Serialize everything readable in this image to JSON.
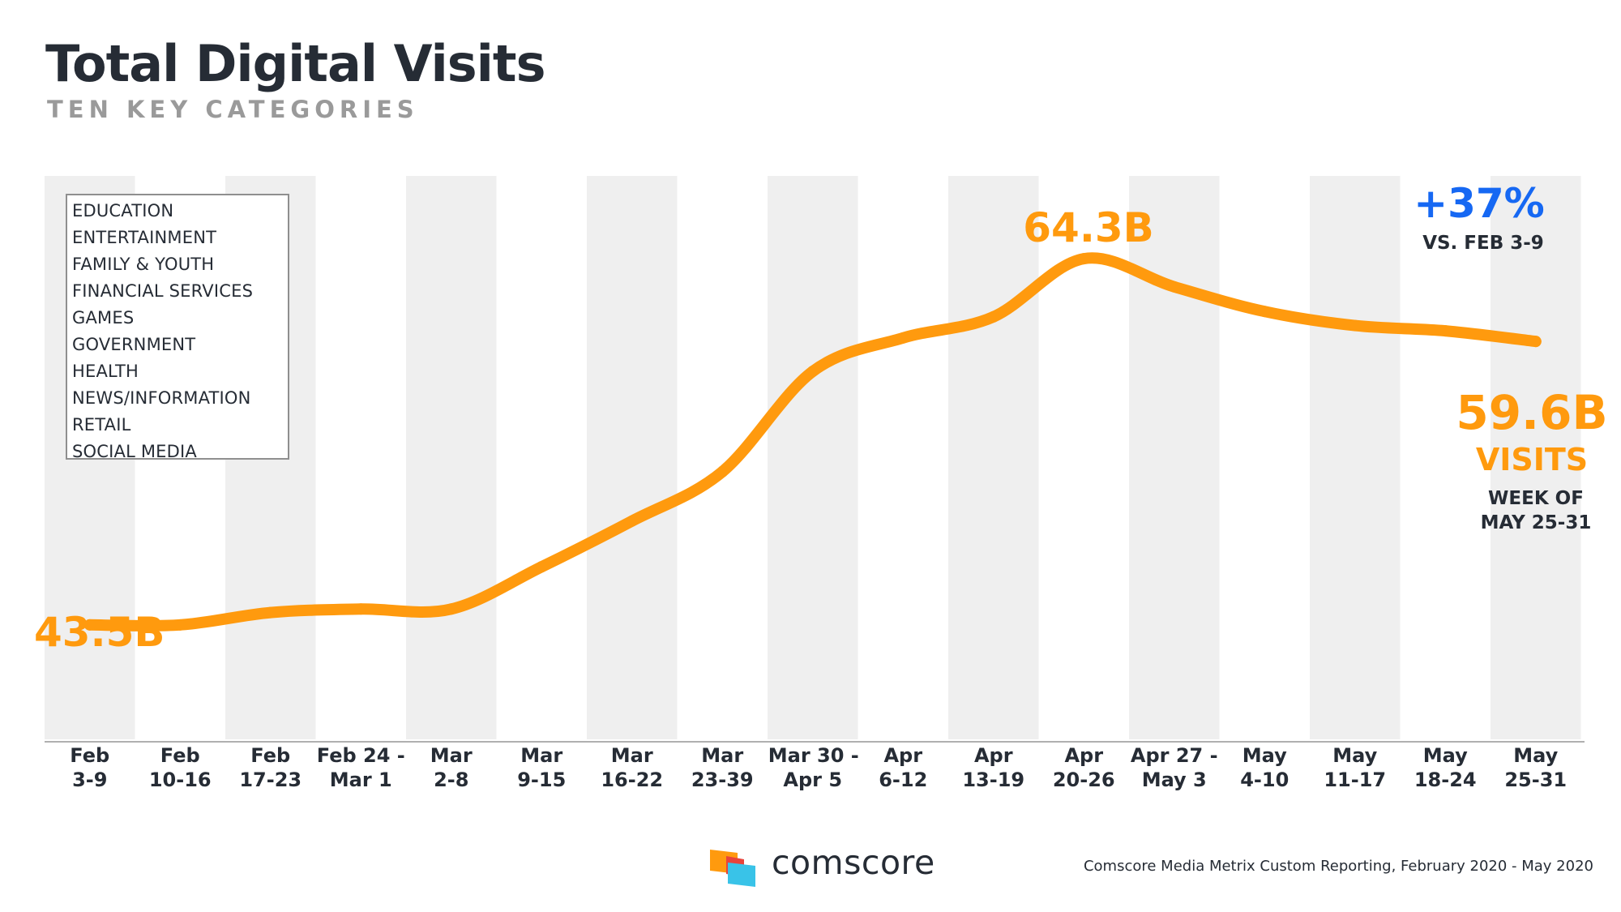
{
  "header": {
    "title": "Total Digital Visits",
    "subtitle": "TEN KEY CATEGORIES"
  },
  "legend": {
    "items": [
      "EDUCATION",
      "ENTERTAINMENT",
      "FAMILY & YOUTH",
      "FINANCIAL SERVICES",
      "GAMES",
      "GOVERNMENT",
      "HEALTH",
      "NEWS/INFORMATION",
      "RETAIL",
      "SOCIAL MEDIA"
    ]
  },
  "annotations": {
    "start_value": "43.5B",
    "peak_value": "64.3B",
    "change_pct": "+37%",
    "change_label": "VS. FEB 3-9",
    "end_value": "59.6B",
    "end_unit": "VISITS",
    "end_week_line1": "WEEK OF",
    "end_week_line2": "MAY 25-31"
  },
  "chart_data": {
    "type": "line",
    "categories": [
      [
        "Feb",
        "3-9"
      ],
      [
        "Feb",
        "10-16"
      ],
      [
        "Feb",
        "17-23"
      ],
      [
        "Feb 24 -",
        "Mar 1"
      ],
      [
        "Mar",
        "2-8"
      ],
      [
        "Mar",
        "9-15"
      ],
      [
        "Mar",
        "16-22"
      ],
      [
        "Mar",
        "23-39"
      ],
      [
        "Mar 30 -",
        "Apr 5"
      ],
      [
        "Apr",
        "6-12"
      ],
      [
        "Apr",
        "13-19"
      ],
      [
        "Apr",
        "20-26"
      ],
      [
        "Apr 27 -",
        "May 3"
      ],
      [
        "May",
        "4-10"
      ],
      [
        "May",
        "11-17"
      ],
      [
        "May",
        "18-24"
      ],
      [
        "May",
        "25-31"
      ]
    ],
    "series": [
      {
        "values": [
          43.5,
          43.5,
          44.2,
          44.4,
          44.4,
          46.8,
          49.4,
          52.2,
          57.9,
          59.8,
          61.0,
          64.3,
          62.7,
          61.3,
          60.5,
          60.2,
          59.6
        ]
      }
    ],
    "value_unit": "B",
    "ylim": [
      37,
      69
    ],
    "line_color": "#ff9a0e",
    "band_color": "#efefef",
    "shaded_bands": "alternating columns starting with the first",
    "grid": false
  },
  "footer": {
    "logo_text": "comscore",
    "source": "Comscore Media Metrix Custom Reporting, February 2020 - May 2020"
  },
  "colors": {
    "orange": "#ff9a0e",
    "blue": "#1668f3",
    "dark_text": "#262c35",
    "subtitle_gray": "#9a9a9a",
    "logo_orange": "#ff9a0e",
    "logo_red": "#e8433b",
    "logo_cyan": "#39c3e8"
  }
}
